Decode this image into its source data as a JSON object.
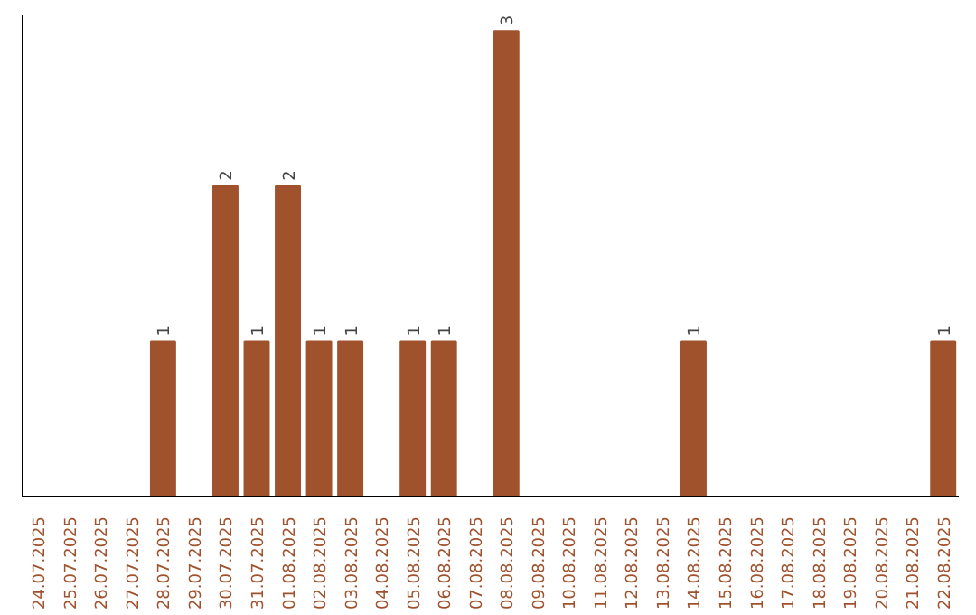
{
  "chart_data": {
    "type": "bar",
    "categories": [
      "24.07.2025",
      "25.07.2025",
      "26.07.2025",
      "27.07.2025",
      "28.07.2025",
      "29.07.2025",
      "30.07.2025",
      "31.07.2025",
      "01.08.2025",
      "02.08.2025",
      "03.08.2025",
      "04.08.2025",
      "05.08.2025",
      "06.08.2025",
      "07.08.2025",
      "08.08.2025",
      "09.08.2025",
      "10.08.2025",
      "11.08.2025",
      "12.08.2025",
      "13.08.2025",
      "14.08.2025",
      "15.08.2025",
      "16.08.2025",
      "17.08.2025",
      "18.08.2025",
      "19.08.2025",
      "20.08.2025",
      "21.08.2025",
      "22.08.2025"
    ],
    "values": [
      0,
      0,
      0,
      0,
      1,
      0,
      2,
      1,
      2,
      1,
      1,
      0,
      1,
      1,
      0,
      3,
      0,
      0,
      0,
      0,
      0,
      1,
      0,
      0,
      0,
      0,
      0,
      0,
      0,
      1
    ],
    "value_labels": [
      null,
      null,
      null,
      null,
      "1",
      null,
      "2",
      "1",
      "2",
      "1",
      "1",
      null,
      "1",
      "1",
      null,
      "3",
      null,
      null,
      null,
      null,
      null,
      "1",
      null,
      null,
      null,
      null,
      null,
      null,
      null,
      "1"
    ],
    "color": "#a0522d",
    "ylim": [
      0,
      3.1
    ],
    "tick_labels": "x",
    "grid": false
  }
}
